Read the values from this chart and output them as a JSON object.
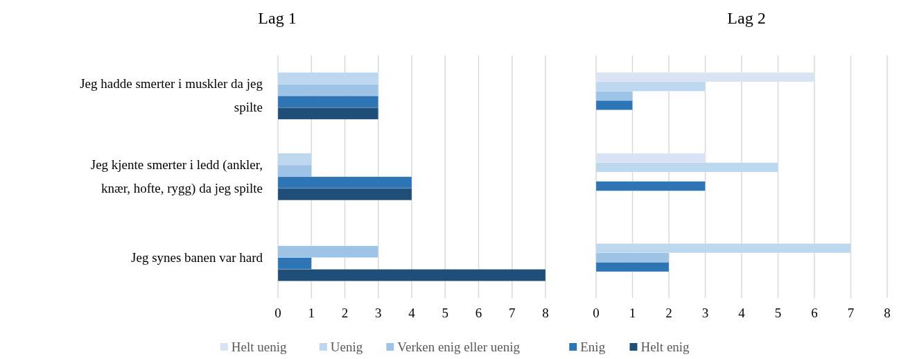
{
  "chart_data": [
    {
      "type": "bar",
      "title": "Lag 1",
      "orientation": "horizontal",
      "categories": [
        "Jeg hadde smerter i muskler da jeg spilte",
        "Jeg kjente smerter i ledd (ankler, knær, hofte, rygg) da jeg spilte",
        "Jeg synes banen var hard"
      ],
      "series": [
        {
          "color": "#bdd7ee",
          "values": [
            3,
            1,
            0
          ]
        },
        {
          "color": "#9dc3e6",
          "values": [
            3,
            1,
            3
          ]
        },
        {
          "color": "#2e75b6",
          "values": [
            3,
            4,
            1
          ]
        },
        {
          "color": "#1f4e79",
          "values": [
            3,
            4,
            8
          ]
        }
      ],
      "xlim": [
        0,
        8
      ],
      "xticks": [
        0,
        1,
        2,
        3,
        4,
        5,
        6,
        7,
        8
      ],
      "grid": "x"
    },
    {
      "type": "bar",
      "title": "Lag 2",
      "orientation": "horizontal",
      "categories": [
        null,
        null,
        null
      ],
      "series": [
        {
          "name": "Helt uenig",
          "color": "#dae3f3",
          "values": [
            6,
            3,
            0
          ]
        },
        {
          "name": "Uenig",
          "color": "#bdd7ee",
          "values": [
            3,
            5,
            7
          ]
        },
        {
          "name": "Verken enig eller uenig",
          "color": "#9dc3e6",
          "values": [
            1,
            0,
            2
          ]
        },
        {
          "name": "Enig",
          "color": "#2e75b6",
          "values": [
            1,
            3,
            2
          ]
        },
        {
          "name": "Helt enig",
          "color": "#1f4e79",
          "values": [
            0,
            0,
            0
          ]
        }
      ],
      "xlim": [
        0,
        8
      ],
      "xticks": [
        0,
        1,
        2,
        3,
        4,
        5,
        6,
        7,
        8
      ],
      "grid": "x",
      "legend": "bottom"
    }
  ]
}
